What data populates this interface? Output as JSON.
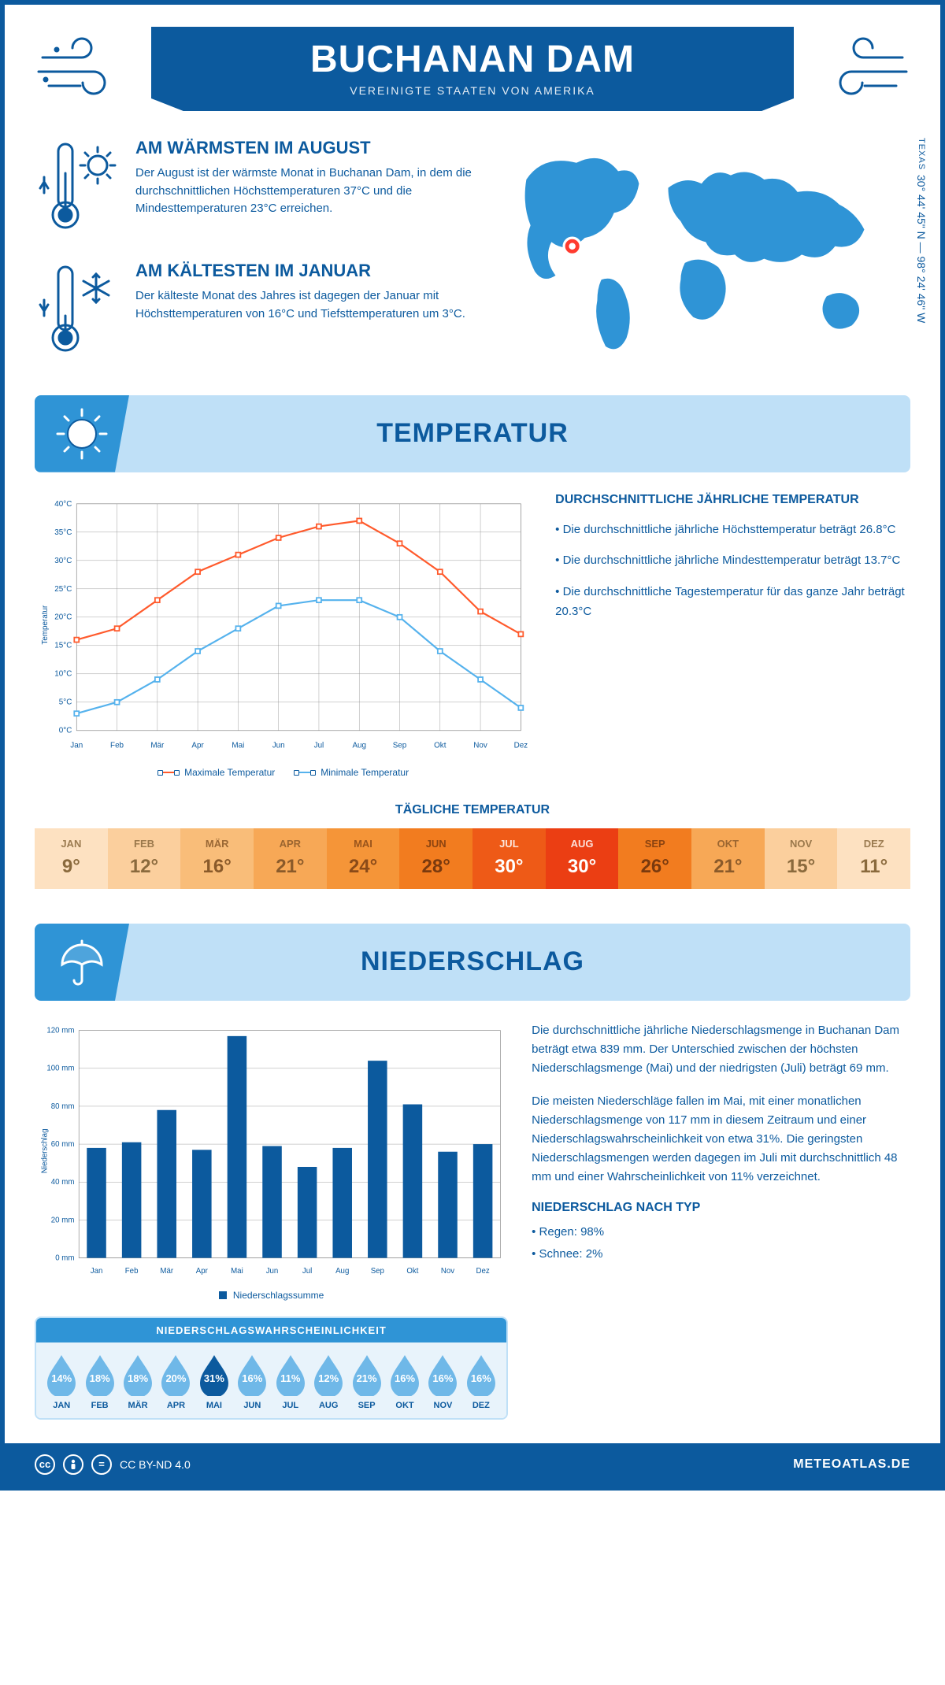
{
  "header": {
    "title": "BUCHANAN DAM",
    "subtitle": "VEREINIGTE STAATEN VON AMERIKA"
  },
  "intro": {
    "warm": {
      "title": "AM WÄRMSTEN IM AUGUST",
      "text": "Der August ist der wärmste Monat in Buchanan Dam, in dem die durchschnittlichen Höchsttemperaturen 37°C und die Mindesttemperaturen 23°C erreichen."
    },
    "cold": {
      "title": "AM KÄLTESTEN IM JANUAR",
      "text": "Der kälteste Monat des Jahres ist dagegen der Januar mit Höchsttemperaturen von 16°C und Tiefsttemperaturen um 3°C."
    },
    "region": "TEXAS",
    "coords": "30° 44' 45\" N — 98° 24' 46\" W"
  },
  "months": [
    "Jan",
    "Feb",
    "Mär",
    "Apr",
    "Mai",
    "Jun",
    "Jul",
    "Aug",
    "Sep",
    "Okt",
    "Nov",
    "Dez"
  ],
  "months_upper": [
    "JAN",
    "FEB",
    "MÄR",
    "APR",
    "MAI",
    "JUN",
    "JUL",
    "AUG",
    "SEP",
    "OKT",
    "NOV",
    "DEZ"
  ],
  "temp": {
    "section_title": "TEMPERATUR",
    "info_title": "DURCHSCHNITTLICHE JÄHRLICHE TEMPERATUR",
    "bullets": [
      "• Die durchschnittliche jährliche Höchsttemperatur beträgt 26.8°C",
      "• Die durchschnittliche jährliche Mindesttemperatur beträgt 13.7°C",
      "• Die durchschnittliche Tagestemperatur für das ganze Jahr beträgt 20.3°C"
    ],
    "chart": {
      "ylabel": "Temperatur",
      "ylim": [
        0,
        40
      ],
      "ytick_step": 5,
      "ytick_suffix": "°C",
      "series": {
        "max": {
          "label": "Maximale Temperatur",
          "color": "#ff5a2c",
          "values": [
            16,
            18,
            23,
            28,
            31,
            34,
            36,
            37,
            33,
            28,
            21,
            17
          ]
        },
        "min": {
          "label": "Minimale Temperatur",
          "color": "#55b2ed",
          "values": [
            3,
            5,
            9,
            14,
            18,
            22,
            23,
            23,
            20,
            14,
            9,
            4
          ]
        }
      },
      "grid_color": "#888",
      "background": "#ffffff"
    },
    "daily_title": "TÄGLICHE TEMPERATUR",
    "daily": {
      "values": [
        "9°",
        "12°",
        "16°",
        "21°",
        "24°",
        "28°",
        "30°",
        "30°",
        "26°",
        "21°",
        "15°",
        "11°"
      ],
      "bg_colors": [
        "#fde1c1",
        "#fbcf9d",
        "#f9bd79",
        "#f7a856",
        "#f59538",
        "#f27c1f",
        "#ee5a17",
        "#eb3e13",
        "#f27c1f",
        "#f7a856",
        "#fbcf9d",
        "#fde1c1"
      ],
      "text_colors": [
        "#8a6a3d",
        "#8a6a3d",
        "#8a5a2a",
        "#8a5a2a",
        "#8a4a18",
        "#7a3a0e",
        "#ffffff",
        "#ffffff",
        "#7a3a0e",
        "#8a5a2a",
        "#8a6a3d",
        "#8a6a3d"
      ]
    }
  },
  "precip": {
    "section_title": "NIEDERSCHLAG",
    "chart": {
      "ylabel": "Niederschlag",
      "ylim": [
        0,
        120
      ],
      "ytick_step": 20,
      "ytick_suffix": " mm",
      "values": [
        58,
        61,
        78,
        57,
        117,
        59,
        48,
        58,
        104,
        81,
        56,
        60
      ],
      "bar_color": "#0c5a9e",
      "legend": "Niederschlagssumme"
    },
    "paragraphs": [
      "Die durchschnittliche jährliche Niederschlagsmenge in Buchanan Dam beträgt etwa 839 mm. Der Unterschied zwischen der höchsten Niederschlagsmenge (Mai) und der niedrigsten (Juli) beträgt 69 mm.",
      "Die meisten Niederschläge fallen im Mai, mit einer monatlichen Niederschlagsmenge von 117 mm in diesem Zeitraum und einer Niederschlagswahrscheinlichkeit von etwa 31%. Die geringsten Niederschlagsmengen werden dagegen im Juli mit durchschnittlich 48 mm und einer Wahrscheinlichkeit von 11% verzeichnet."
    ],
    "type_title": "NIEDERSCHLAG NACH TYP",
    "types": [
      "• Regen: 98%",
      "• Schnee: 2%"
    ],
    "prob": {
      "title": "NIEDERSCHLAGSWAHRSCHEINLICHKEIT",
      "values": [
        14,
        18,
        18,
        20,
        31,
        16,
        11,
        12,
        21,
        16,
        16,
        16
      ],
      "light_fill": "#6fb8e8",
      "dark_fill": "#0c5a9e",
      "max_value": 31
    }
  },
  "footer": {
    "license": "CC BY-ND 4.0",
    "site": "METEOATLAS.DE"
  }
}
